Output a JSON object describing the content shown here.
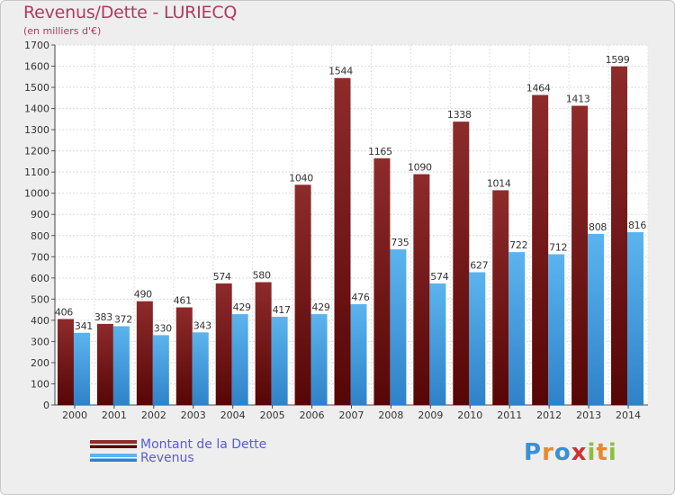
{
  "header": {
    "title": "Revenus/Dette - LURIECQ",
    "subtitle": "(en milliers d'€)"
  },
  "legend": {
    "items": [
      {
        "label": "Montant de la Dette",
        "color": "#7a1a1a"
      },
      {
        "label": "Revenus",
        "color": "#3f9be0"
      }
    ]
  },
  "logo": {
    "text": "Proxiti",
    "letters": [
      {
        "ch": "P",
        "color": "#3b8fd6"
      },
      {
        "ch": "r",
        "color": "#e8892b"
      },
      {
        "ch": "o",
        "color": "#3b8fd6"
      },
      {
        "ch": "x",
        "color": "#cc3333"
      },
      {
        "ch": "i",
        "color": "#8cbf3f"
      },
      {
        "ch": "t",
        "color": "#e8892b"
      },
      {
        "ch": "i",
        "color": "#8cbf3f"
      }
    ]
  },
  "chart_data": {
    "type": "bar",
    "categories": [
      "2000",
      "2001",
      "2002",
      "2003",
      "2004",
      "2005",
      "2006",
      "2007",
      "2008",
      "2009",
      "2010",
      "2011",
      "2012",
      "2013",
      "2014"
    ],
    "series": [
      {
        "name": "Montant de la Dette",
        "color": "#7a1a1a",
        "values": [
          406,
          383,
          490,
          461,
          574,
          580,
          1040,
          1544,
          1165,
          1090,
          1338,
          1014,
          1464,
          1413,
          1599
        ]
      },
      {
        "name": "Revenus",
        "color": "#3f9be0",
        "values": [
          341,
          372,
          330,
          343,
          429,
          417,
          429,
          476,
          735,
          574,
          627,
          722,
          712,
          808,
          816
        ]
      }
    ],
    "title": "Revenus/Dette - LURIECQ",
    "subtitle": "(en milliers d'€)",
    "xlabel": "",
    "ylabel": "",
    "ylim": [
      0,
      1700
    ],
    "ytick_step": 100,
    "grid": true,
    "legend_position": "bottom-left"
  }
}
